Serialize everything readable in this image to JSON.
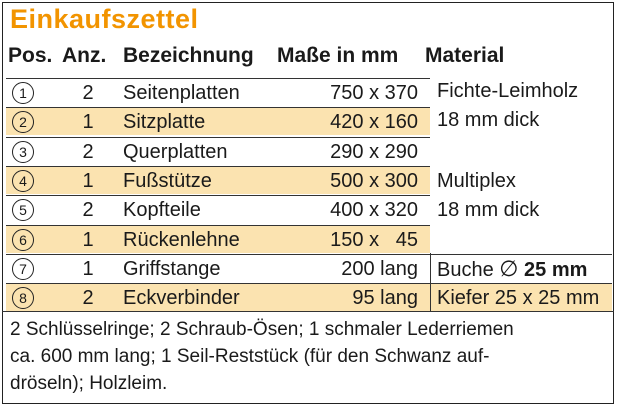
{
  "title": "Einkaufszettel",
  "headers": {
    "pos": "Pos.",
    "anz": "Anz.",
    "bez": "Bezeichnung",
    "mas": "Maße in mm",
    "mat": "Material"
  },
  "rows": [
    {
      "pos": "1",
      "anz": "2",
      "bez": "Seitenplatten",
      "mas": "750 x 370",
      "shaded": false
    },
    {
      "pos": "2",
      "anz": "1",
      "bez": "Sitzplatte",
      "mas": "420 x 160",
      "shaded": true
    },
    {
      "pos": "3",
      "anz": "2",
      "bez": "Querplatten",
      "mas": "290 x 290",
      "shaded": false
    },
    {
      "pos": "4",
      "anz": "1",
      "bez": "Fußstütze",
      "mas": "500 x 300",
      "shaded": true
    },
    {
      "pos": "5",
      "anz": "2",
      "bez": "Kopfteile",
      "mas": "400 x 320",
      "shaded": false
    },
    {
      "pos": "6",
      "anz": "1",
      "bez": "Rückenlehne",
      "mas": "150 x   45",
      "shaded": true
    },
    {
      "pos": "7",
      "anz": "1",
      "bez": "Griffstange",
      "mas": "200 lang",
      "shaded": false
    },
    {
      "pos": "8",
      "anz": "2",
      "bez": "Eckverbinder",
      "mas": "95 lang",
      "shaded": true
    }
  ],
  "materials": {
    "m1": "Fichte-Leimholz",
    "m2": "18 mm dick",
    "m3": "Multiplex",
    "m4": "18 mm dick",
    "m7a": "Buche",
    "m7b": "25 mm",
    "m8": "Kiefer 25 x 25 mm"
  },
  "note": {
    "line1": "2 Schlüsselringe; 2 Schraub-Ösen; 1 schmaler Lederriemen",
    "line2": "ca. 600 mm lang; 1 Seil-Reststück (für den Schwanz auf-",
    "line3": "dröseln); Holzleim."
  },
  "colors": {
    "accent": "#f29400",
    "shade": "#fbe3b0"
  }
}
